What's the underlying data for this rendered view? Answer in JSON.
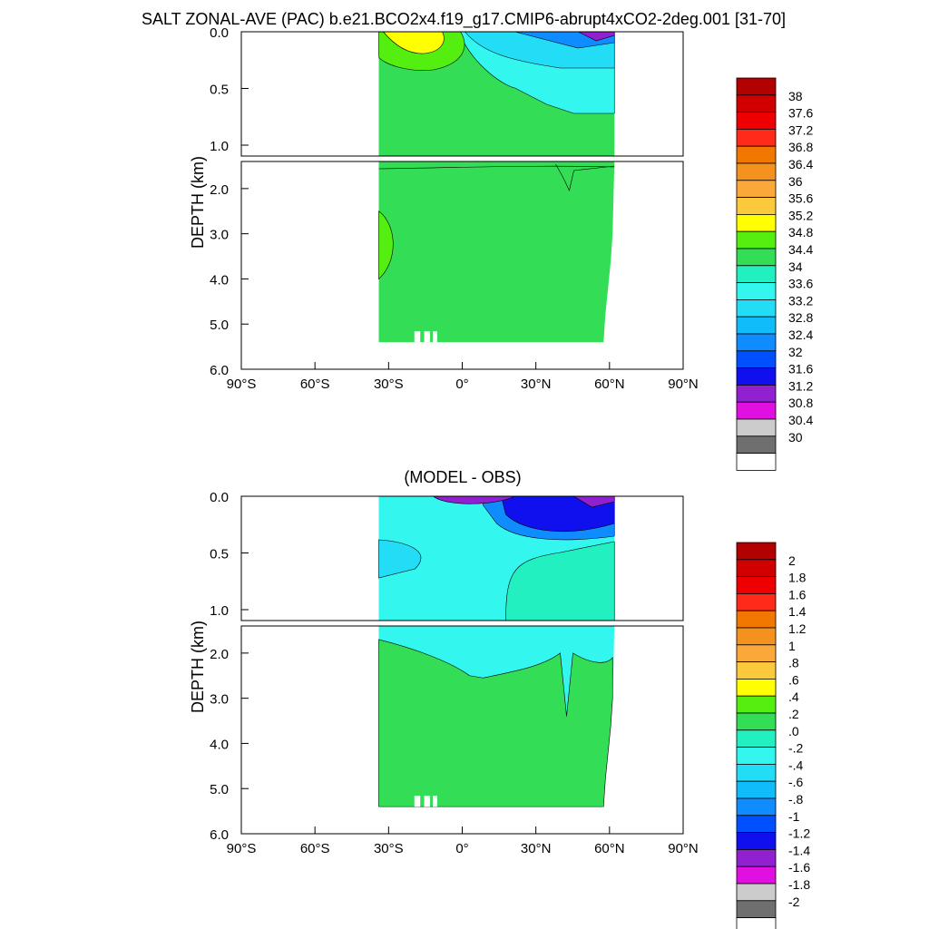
{
  "figure": {
    "title": "SALT ZONAL-AVE (PAC) b.e21.BCO2x4.f19_g17.CMIP6-abrupt4xCO2-2deg.001 [31-70]"
  },
  "chart_data": [
    {
      "type": "heatmap",
      "title": "",
      "xlabel": "",
      "ylabel": "DEPTH (km)",
      "x_ticks": [
        "90°S",
        "60°S",
        "30°S",
        "0°",
        "30°N",
        "60°N",
        "90°N"
      ],
      "upper_depth_ticks": [
        "0.0",
        "0.5",
        "1.0"
      ],
      "lower_depth_ticks": [
        "2.0",
        "3.0",
        "4.0",
        "5.0",
        "6.0"
      ],
      "xlim": [
        -90,
        90
      ],
      "ylim_km": [
        0,
        6
      ],
      "colorbar": {
        "labels": [
          "38",
          "37.6",
          "37.2",
          "36.8",
          "36.4",
          "36",
          "35.6",
          "35.2",
          "34.8",
          "34.4",
          "34",
          "33.6",
          "33.2",
          "32.8",
          "32.4",
          "32",
          "31.6",
          "31.2",
          "30.8",
          "30.4",
          "30"
        ],
        "colors": [
          "#b30000",
          "#d10000",
          "#ee0000",
          "#ff2a1a",
          "#f07800",
          "#f5921e",
          "#faa83a",
          "#fcc83c",
          "#ffff00",
          "#55ee11",
          "#33dd55",
          "#22f0c0",
          "#33f7ee",
          "#22ddf5",
          "#10bcfa",
          "#0f8cff",
          "#0050ff",
          "#1010ee",
          "#9020d0",
          "#e010e0",
          "#cccccc",
          "#6f6f6f",
          "#ffffff"
        ]
      },
      "data_extent": {
        "lat_min": -34,
        "lat_max": 62
      },
      "field_description_values": {
        "deep_value_range": "34.4–34.8",
        "surface_max_range": "35.2–35.6",
        "surface_min_range": "30.8–31.2"
      }
    },
    {
      "type": "heatmap",
      "title": "(MODEL - OBS)",
      "xlabel": "",
      "ylabel": "DEPTH (km)",
      "x_ticks": [
        "90°S",
        "60°S",
        "30°S",
        "0°",
        "30°N",
        "60°N",
        "90°N"
      ],
      "upper_depth_ticks": [
        "0.0",
        "0.5",
        "1.0"
      ],
      "lower_depth_ticks": [
        "2.0",
        "3.0",
        "4.0",
        "5.0",
        "6.0"
      ],
      "xlim": [
        -90,
        90
      ],
      "ylim_km": [
        0,
        6
      ],
      "colorbar": {
        "labels": [
          "2",
          "1.8",
          "1.6",
          "1.4",
          "1.2",
          "1",
          ".8",
          ".6",
          ".4",
          ".2",
          ".0",
          "-.2",
          "-.4",
          "-.6",
          "-.8",
          "-1",
          "-1.2",
          "-1.4",
          "-1.6",
          "-1.8",
          "-2"
        ],
        "colors": [
          "#b30000",
          "#d10000",
          "#ee0000",
          "#ff2a1a",
          "#f07800",
          "#f5921e",
          "#faa83a",
          "#fcc83c",
          "#ffff00",
          "#55ee11",
          "#33dd55",
          "#22f0c0",
          "#33f7ee",
          "#22ddf5",
          "#10bcfa",
          "#0f8cff",
          "#0050ff",
          "#1010ee",
          "#9020d0",
          "#e010e0",
          "#cccccc",
          "#6f6f6f",
          "#ffffff"
        ]
      },
      "data_extent": {
        "lat_min": -34,
        "lat_max": 62
      },
      "field_description_values": {
        "deep_value_range": "0.0–0.2",
        "intermediate_value_range": "-0.2–0.0",
        "surface_min_range": "below -1.4"
      }
    }
  ]
}
